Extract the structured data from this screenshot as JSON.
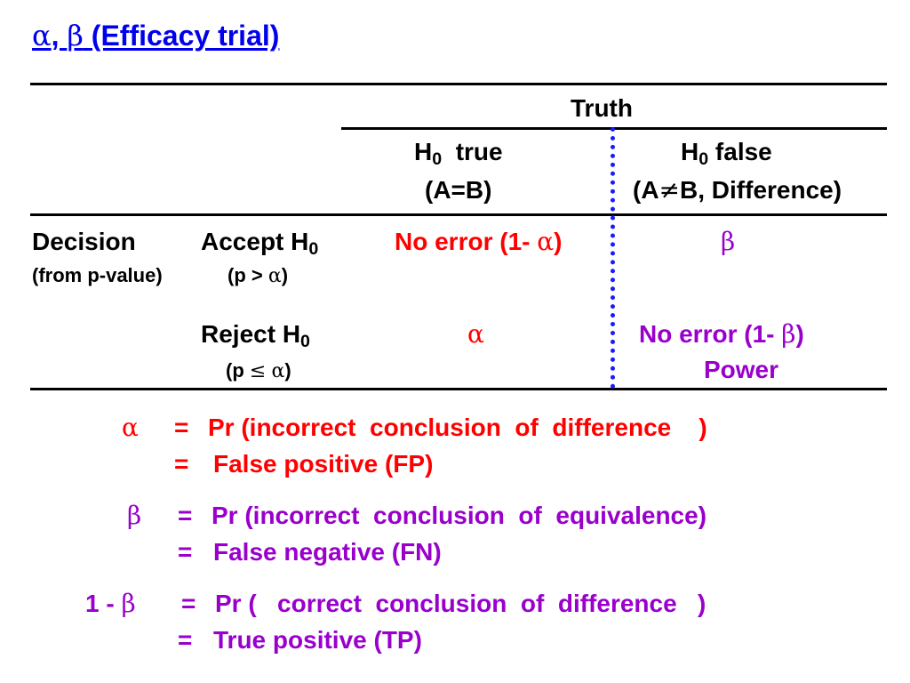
{
  "title": {
    "alpha": "α",
    "sep": ", ",
    "beta": "β",
    "rest": " (Efficacy trial)"
  },
  "table": {
    "truth_label": "Truth",
    "col1": {
      "h": "H",
      "sub": "0",
      "text": "  true",
      "line2": "(A=B)"
    },
    "col2": {
      "h": "H",
      "sub": "0",
      "text": " false",
      "line2_pre": "(A",
      "neq": "≠",
      "line2_post": "B, Difference)"
    },
    "decision_label": "Decision",
    "decision_sub": "(from p-value)",
    "accept": {
      "label": "Accept H",
      "sub": "0",
      "cond_pre": "(p > ",
      "cond_sym": "α",
      "cond_post": ")"
    },
    "reject": {
      "label": "Reject H",
      "sub": "0",
      "cond_pre": "(p ",
      "cond_le": "≤",
      "cond_sp": " ",
      "cond_sym": "α",
      "cond_post": ")"
    },
    "cells": {
      "accept_true": {
        "pre": "No error (1- ",
        "sym": "α",
        "post": ")"
      },
      "accept_false": "β",
      "reject_true": "α",
      "reject_false": {
        "pre": "No error (1- ",
        "sym": "β",
        "post": ")",
        "line2": "Power"
      }
    }
  },
  "definitions": [
    {
      "symbol": "α",
      "eq1": "=",
      "line1": "Pr (incorrect  conclusion  of  difference    )",
      "eq2": "=",
      "line2": "False positive (FP)"
    },
    {
      "symbol": "β",
      "eq1": "=",
      "line1": "Pr (incorrect  conclusion  of  equivalence)",
      "eq2": "=",
      "line2": "False negative (FN)"
    },
    {
      "symbol_pre": "1 - ",
      "symbol": "β",
      "eq1": "=",
      "line1": "Pr (   correct  conclusion  of  difference   )",
      "eq2": "=",
      "line2": "True positive (TP)"
    }
  ],
  "colors": {
    "title": "#0000ee",
    "alpha_text": "#ff0000",
    "beta_text": "#9900cc",
    "divider": "#1a1aff"
  }
}
